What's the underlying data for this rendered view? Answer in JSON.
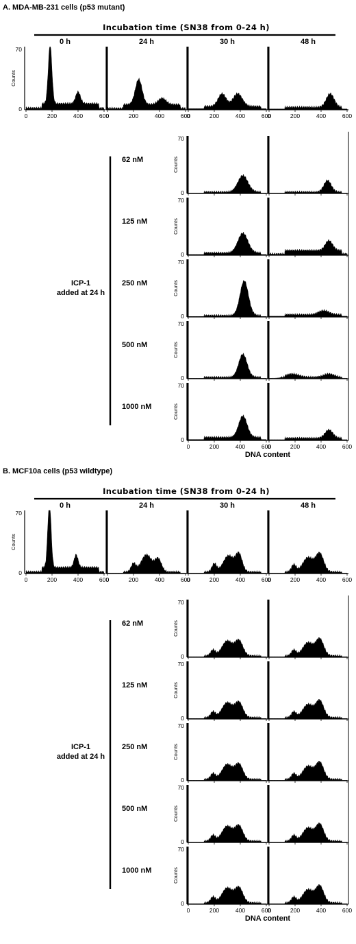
{
  "shared": {
    "incubation_label": "Incubation time (SN38 from 0-24 h)",
    "time_labels": [
      "0 h",
      "24 h",
      "30 h",
      "48 h"
    ],
    "counts_label": "Counts",
    "icp_label_line1": "ICP-1",
    "icp_label_line2": "added at 24 h",
    "concentrations": [
      "62 nM",
      "125 nM",
      "250 nM",
      "500 nM",
      "1000 nM"
    ],
    "x_axis_label": "DNA content"
  },
  "panels": [
    {
      "title": "A.  MDA-MB-231 cells (p53 mutant)"
    },
    {
      "title": "B.  MCF10a cells (p53 wildtype)"
    }
  ],
  "chart_data": [
    {
      "type": "area",
      "panel": "A",
      "title": "A.  MDA-MB-231 cells (p53 mutant)",
      "xlabel": "DNA content",
      "ylabel": "Counts",
      "xlim": [
        0,
        600
      ],
      "ylim": [
        0,
        70
      ],
      "xticks": [
        0,
        200,
        400,
        600
      ],
      "yticks": [
        0,
        70
      ],
      "series": [
        {
          "name": "0 h",
          "peaks": [
            [
              185,
              65,
              14
            ],
            [
              400,
              13,
              18
            ]
          ],
          "base": 7,
          "spike": 0
        },
        {
          "name": "24 h",
          "peaks": [
            [
              240,
              28,
              26
            ],
            [
              420,
              7,
              30
            ]
          ],
          "base": 6,
          "spike": 70
        },
        {
          "name": "30 h",
          "peaks": [
            [
              260,
              14,
              30
            ],
            [
              380,
              14,
              35
            ]
          ],
          "base": 4,
          "spike": 70
        },
        {
          "name": "48 h",
          "peaks": [
            [
              470,
              15,
              30
            ]
          ],
          "base": 3,
          "spike": 70
        },
        {
          "name": "62 nM",
          "panel_column": "30 h",
          "peaks": [
            [
              420,
              20,
              38
            ]
          ],
          "base": 2,
          "spike": 70
        },
        {
          "name": "62 nM",
          "panel_column": "48 h",
          "peaks": [
            [
              450,
              14,
              28
            ]
          ],
          "base": 2,
          "spike": 70
        },
        {
          "name": "125 nM",
          "panel_column": "30 h",
          "peaks": [
            [
              420,
              24,
              38
            ]
          ],
          "base": 3,
          "spike": 70
        },
        {
          "name": "125 nM",
          "panel_column": "48 h",
          "peaks": [
            [
              460,
              12,
              28
            ]
          ],
          "base": 6,
          "spike": 70
        },
        {
          "name": "250 nM",
          "panel_column": "30 h",
          "peaks": [
            [
              430,
              42,
              32
            ]
          ],
          "base": 2,
          "spike": 70
        },
        {
          "name": "250 nM",
          "panel_column": "48 h",
          "peaks": [
            [
              420,
              5,
              40
            ]
          ],
          "base": 3,
          "spike": 70
        },
        {
          "name": "500 nM",
          "panel_column": "30 h",
          "peaks": [
            [
              420,
              28,
              32
            ]
          ],
          "base": 2,
          "spike": 70
        },
        {
          "name": "500 nM",
          "panel_column": "48 h",
          "peaks": [
            [
              180,
              4,
              50
            ],
            [
              460,
              4,
              40
            ]
          ],
          "base": 2,
          "spike": 70
        },
        {
          "name": "1000 nM",
          "panel_column": "30 h",
          "peaks": [
            [
              420,
              26,
              32
            ]
          ],
          "base": 4,
          "spike": 70
        },
        {
          "name": "1000 nM",
          "panel_column": "48 h",
          "peaks": [
            [
              460,
              10,
              30
            ]
          ],
          "base": 3,
          "spike": 70
        }
      ]
    },
    {
      "type": "area",
      "panel": "B",
      "title": "B.  MCF10a cells (p53 wildtype)",
      "xlabel": "DNA content",
      "ylabel": "Counts",
      "xlim": [
        0,
        600
      ],
      "ylim": [
        0,
        70
      ],
      "xticks": [
        0,
        200,
        400,
        600
      ],
      "yticks": [
        0,
        70
      ],
      "series": [
        {
          "name": "0 h",
          "peaks": [
            [
              180,
              72,
              13
            ],
            [
              385,
              14,
              15
            ]
          ],
          "base": 7,
          "spike": 0
        },
        {
          "name": "24 h",
          "peaks": [
            [
              200,
              9,
              18
            ],
            [
              300,
              19,
              40
            ],
            [
              390,
              14,
              25
            ]
          ],
          "base": 2,
          "spike": 70
        },
        {
          "name": "30 h",
          "peaks": [
            [
              200,
              9,
              18
            ],
            [
              310,
              18,
              40
            ],
            [
              390,
              19,
              25
            ]
          ],
          "base": 2,
          "spike": 70
        },
        {
          "name": "48 h",
          "peaks": [
            [
              190,
              8,
              18
            ],
            [
              300,
              16,
              40
            ],
            [
              390,
              20,
              30
            ]
          ],
          "base": 2,
          "spike": 70
        },
        {
          "name": "62 nM",
          "panel_column": "30 h",
          "peaks": [
            [
              190,
              7,
              18
            ],
            [
              300,
              18,
              40
            ],
            [
              390,
              18,
              30
            ]
          ],
          "base": 2,
          "spike": 70
        },
        {
          "name": "62 nM",
          "panel_column": "48 h",
          "peaks": [
            [
              190,
              7,
              18
            ],
            [
              300,
              16,
              40
            ],
            [
              390,
              20,
              30
            ]
          ],
          "base": 2,
          "spike": 70
        },
        {
          "name": "125 nM",
          "panel_column": "30 h",
          "peaks": [
            [
              190,
              7,
              18
            ],
            [
              300,
              18,
              40
            ],
            [
              390,
              18,
              30
            ]
          ],
          "base": 2,
          "spike": 70
        },
        {
          "name": "125 nM",
          "panel_column": "48 h",
          "peaks": [
            [
              190,
              7,
              18
            ],
            [
              300,
              16,
              40
            ],
            [
              390,
              20,
              30
            ]
          ],
          "base": 2,
          "spike": 70
        },
        {
          "name": "250 nM",
          "panel_column": "30 h",
          "peaks": [
            [
              190,
              7,
              18
            ],
            [
              300,
              18,
              40
            ],
            [
              390,
              18,
              30
            ]
          ],
          "base": 2,
          "spike": 70
        },
        {
          "name": "250 nM",
          "panel_column": "48 h",
          "peaks": [
            [
              190,
              7,
              18
            ],
            [
              300,
              16,
              40
            ],
            [
              390,
              20,
              30
            ]
          ],
          "base": 2,
          "spike": 70
        },
        {
          "name": "500 nM",
          "panel_column": "30 h",
          "peaks": [
            [
              190,
              7,
              18
            ],
            [
              300,
              18,
              40
            ],
            [
              390,
              18,
              30
            ]
          ],
          "base": 2,
          "spike": 70
        },
        {
          "name": "500 nM",
          "panel_column": "48 h",
          "peaks": [
            [
              190,
              7,
              18
            ],
            [
              300,
              16,
              40
            ],
            [
              390,
              20,
              30
            ]
          ],
          "base": 2,
          "spike": 70
        },
        {
          "name": "1000 nM",
          "panel_column": "30 h",
          "peaks": [
            [
              190,
              7,
              18
            ],
            [
              300,
              18,
              40
            ],
            [
              390,
              18,
              30
            ]
          ],
          "base": 2,
          "spike": 70
        },
        {
          "name": "1000 nM",
          "panel_column": "48 h",
          "peaks": [
            [
              190,
              7,
              18
            ],
            [
              300,
              16,
              40
            ],
            [
              390,
              20,
              30
            ]
          ],
          "base": 2,
          "spike": 70
        }
      ]
    }
  ]
}
